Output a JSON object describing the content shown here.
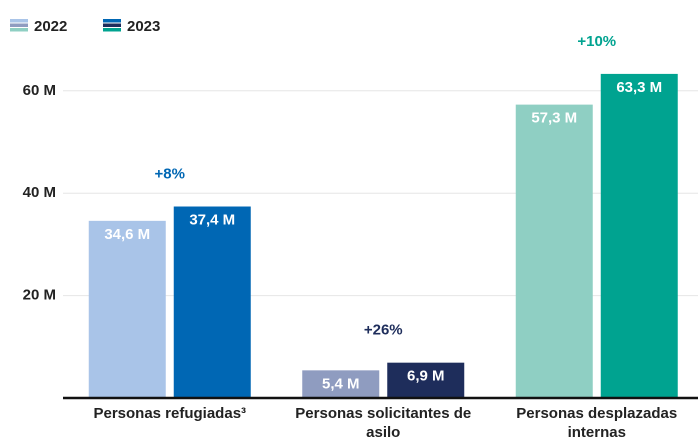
{
  "chart_data": {
    "type": "bar",
    "categories": [
      "Personas refugiadas³",
      "Personas solicitantes de asilo",
      "Personas desplazadas internas"
    ],
    "series": [
      {
        "name": "2022",
        "colors": [
          "#a9c4e8",
          "#8f9cc0",
          "#8fcfc3"
        ],
        "values": [
          34.6,
          5.4,
          57.3
        ],
        "value_labels": [
          "34,6 M",
          "5,4 M",
          "57,3 M"
        ]
      },
      {
        "name": "2023",
        "colors": [
          "#0067b4",
          "#1e2d5b",
          "#00a390"
        ],
        "values": [
          37.4,
          6.9,
          63.3
        ],
        "value_labels": [
          "37,4 M",
          "6,9 M",
          "63,3 M"
        ]
      }
    ],
    "annotations": [
      {
        "text": "+8%",
        "color": "#0067b4"
      },
      {
        "text": "+26%",
        "color": "#1e2d5b"
      },
      {
        "text": "+10%",
        "color": "#00a390"
      }
    ],
    "ylim": [
      0,
      75
    ],
    "yticks": [
      {
        "value": 20,
        "label": "20 M"
      },
      {
        "value": 40,
        "label": "40 M"
      },
      {
        "value": 60,
        "label": "60 M"
      }
    ],
    "grid": true
  }
}
